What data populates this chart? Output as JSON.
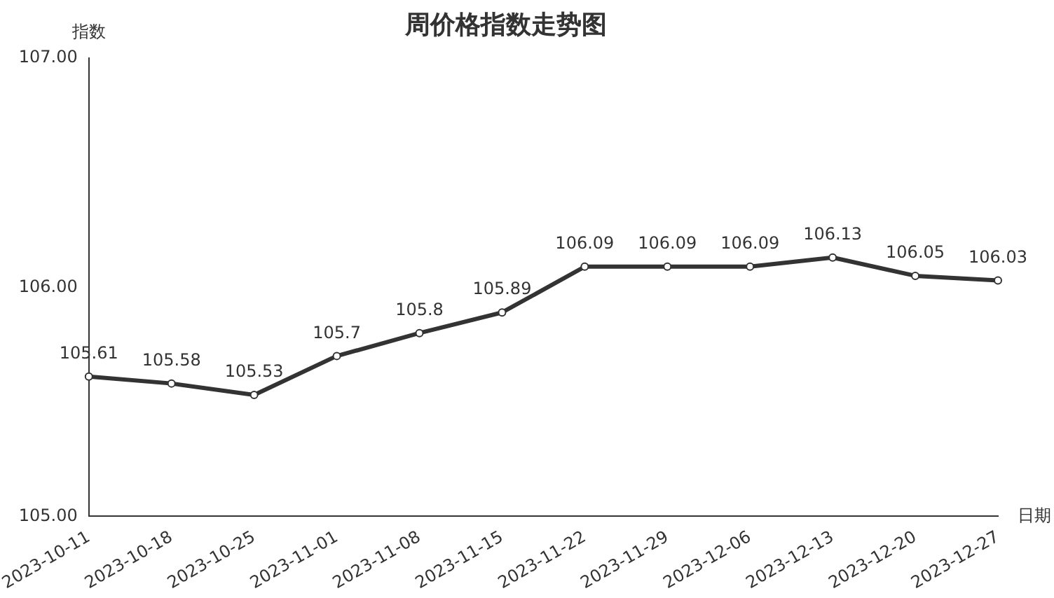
{
  "chart_data": {
    "type": "line",
    "title": "周价格指数走势图",
    "xlabel": "日期",
    "ylabel": "指数",
    "categories": [
      "2023-10-11",
      "2023-10-18",
      "2023-10-25",
      "2023-11-01",
      "2023-11-08",
      "2023-11-15",
      "2023-11-22",
      "2023-11-29",
      "2023-12-06",
      "2023-12-13",
      "2023-12-20",
      "2023-12-27"
    ],
    "series": [
      {
        "color": "#333333",
        "values": [
          105.61,
          105.58,
          105.53,
          105.7,
          105.8,
          105.89,
          106.09,
          106.09,
          106.09,
          106.13,
          106.05,
          106.03
        ]
      }
    ],
    "ylim": [
      105,
      107
    ],
    "yticks": [
      {
        "value": 105,
        "label": "105.00"
      },
      {
        "value": 106,
        "label": "106.00"
      },
      {
        "value": 107,
        "label": "107.00"
      }
    ],
    "grid": false,
    "legend": false,
    "marker": "circle",
    "line_style": "solid",
    "data_labels": true
  }
}
